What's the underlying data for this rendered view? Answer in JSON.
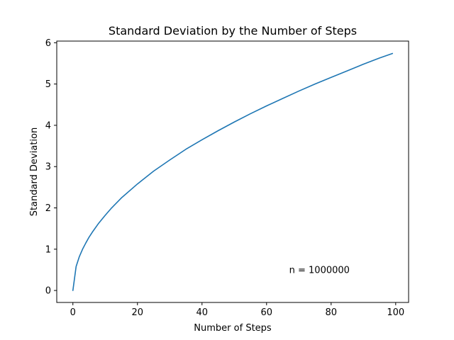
{
  "chart_data": {
    "type": "line",
    "title": "Standard Deviation by the Number of Steps",
    "xlabel": "Number of Steps",
    "ylabel": "Standard Deviation",
    "xlim": [
      -5,
      104
    ],
    "ylim": [
      -0.29,
      6.04
    ],
    "xticks": [
      0,
      20,
      40,
      60,
      80,
      100
    ],
    "yticks": [
      0,
      1,
      2,
      3,
      4,
      5,
      6
    ],
    "grid": false,
    "annotation": {
      "text": "n = 1000000",
      "x": 67,
      "y": 0.5
    },
    "series": [
      {
        "color": "#1f77b4",
        "x": [
          0,
          1,
          2,
          3,
          4,
          5,
          6,
          8,
          10,
          12,
          15,
          20,
          25,
          30,
          35,
          40,
          45,
          50,
          55,
          60,
          65,
          70,
          75,
          80,
          85,
          90,
          95,
          99
        ],
        "y": [
          0,
          0.58,
          0.82,
          1.0,
          1.15,
          1.29,
          1.41,
          1.63,
          1.82,
          2.0,
          2.24,
          2.58,
          2.89,
          3.16,
          3.42,
          3.65,
          3.87,
          4.08,
          4.28,
          4.47,
          4.65,
          4.83,
          5.0,
          5.16,
          5.32,
          5.48,
          5.63,
          5.74
        ]
      }
    ]
  }
}
